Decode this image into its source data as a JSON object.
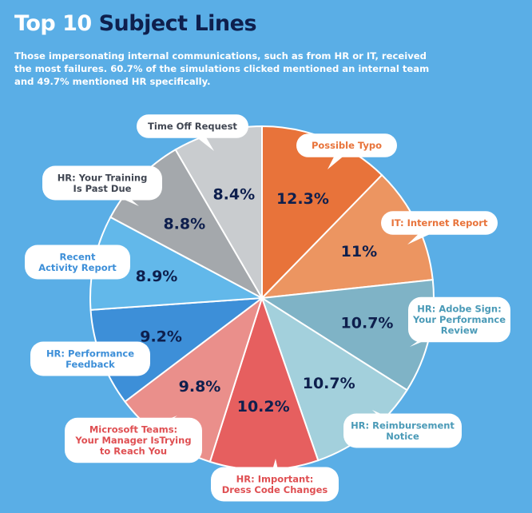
{
  "header": {
    "title_part1": "Top 10",
    "title_part2": "Subject Lines",
    "subtitle": "Those impersonating internal communications, such as from HR or IT, received the most failures. 60.7% of the simulations clicked mentioned an internal team and 49.7% mentioned HR specifically."
  },
  "colors": {
    "background": "#5aaee6",
    "title_white": "#ffffff",
    "title_dark": "#0e1f4d",
    "percent_text": "#0e1f4d",
    "callout_bg": "#ffffff"
  },
  "chart_data": {
    "type": "pie",
    "title": "Top 10 Subject Lines",
    "start": "12 o'clock",
    "direction": "clockwise",
    "slices": [
      {
        "label": "Possible Typo",
        "value": 12.3,
        "display": "12.3%",
        "color": "#e8733a",
        "label_color": "#e8733a"
      },
      {
        "label": "IT: Internet Report",
        "value": 11,
        "display": "11%",
        "color": "#ec9561",
        "label_color": "#e8733a"
      },
      {
        "label": "HR: Adobe Sign: Your Performance Review",
        "value": 10.7,
        "display": "10.7%",
        "color": "#7fb3c6",
        "label_color": "#4a9ab7"
      },
      {
        "label": "HR: Reimbursement Notice",
        "value": 10.7,
        "display": "10.7%",
        "color": "#a3d0dc",
        "label_color": "#4a9ab7"
      },
      {
        "label": "HR: Important: Dress Code Changes",
        "value": 10.2,
        "display": "10.2%",
        "color": "#e65f5f",
        "label_color": "#df4f52"
      },
      {
        "label": "Microsoft Teams: Your Manager IsTrying to Reach You",
        "value": 9.8,
        "display": "9.8%",
        "color": "#ea8f8b",
        "label_color": "#df4f52"
      },
      {
        "label": "HR: Performance Feedback",
        "value": 9.2,
        "display": "9.2%",
        "color": "#3d8fd8",
        "label_color": "#3d8fd8"
      },
      {
        "label": "Recent Activity Report",
        "value": 8.9,
        "display": "8.9%",
        "color": "#62b8ea",
        "label_color": "#3d8fd8"
      },
      {
        "label": "HR: Your Training Is Past Due",
        "value": 8.8,
        "display": "8.8%",
        "color": "#a4a8ac",
        "label_color": "#404652"
      },
      {
        "label": "Time Off Request",
        "value": 8.4,
        "display": "8.4%",
        "color": "#c9cccf",
        "label_color": "#404652"
      }
    ]
  }
}
